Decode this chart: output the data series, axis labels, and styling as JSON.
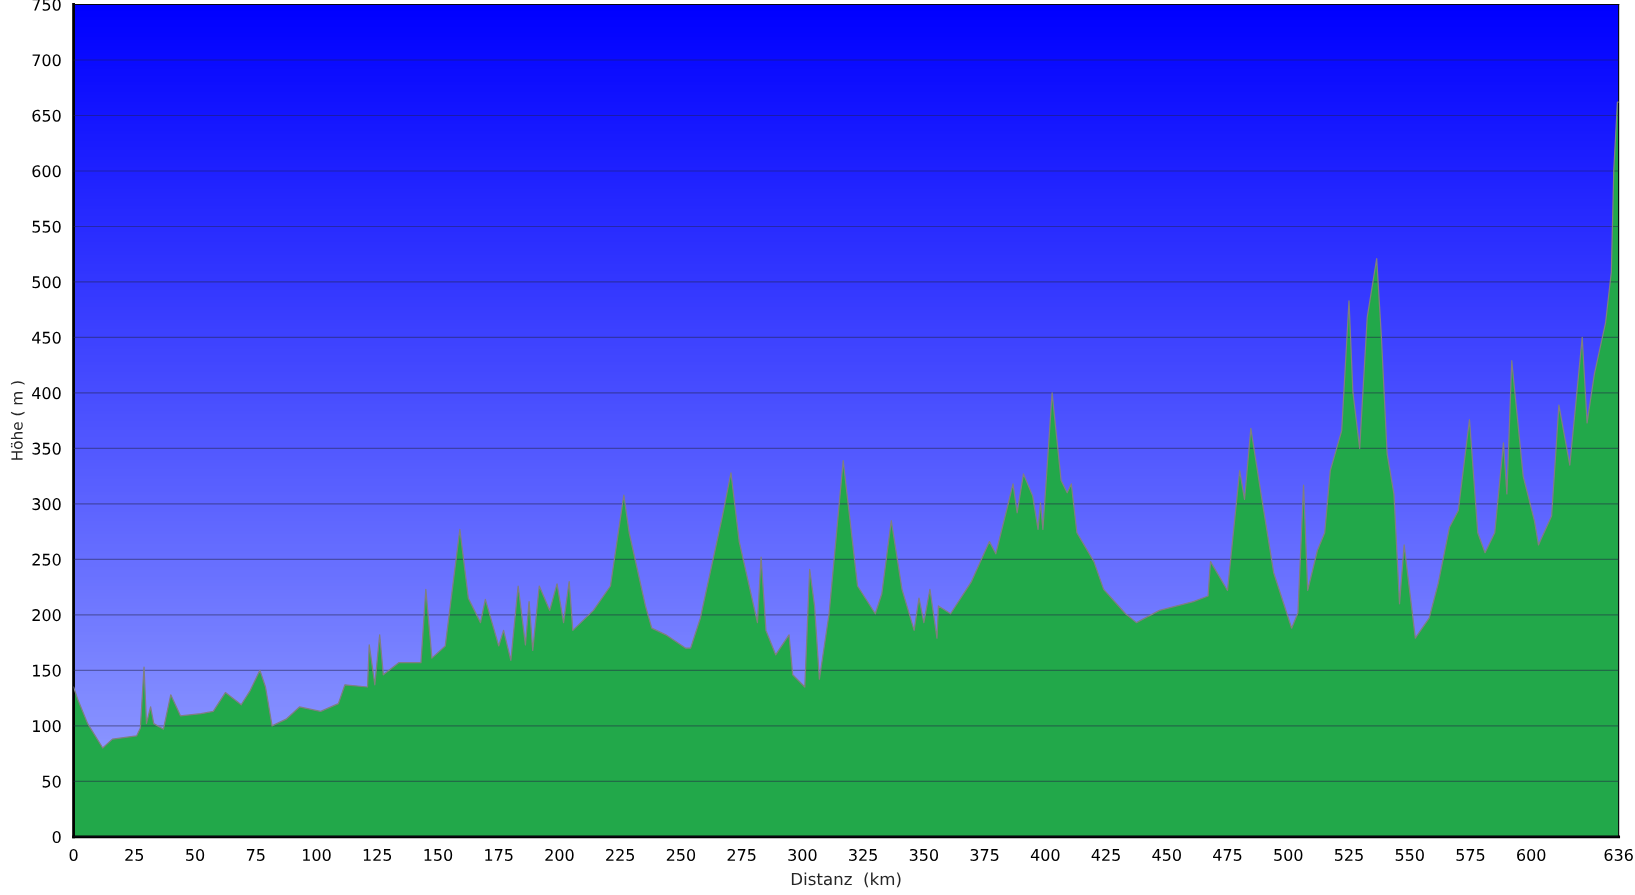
{
  "chart_data": {
    "type": "area",
    "xlabel": "Distanz  (km)",
    "ylabel": "Höhe ( m )",
    "xlim": [
      0,
      636
    ],
    "xticks": [
      0,
      25,
      50,
      75,
      100,
      125,
      150,
      175,
      200,
      225,
      250,
      275,
      300,
      325,
      350,
      375,
      400,
      425,
      450,
      475,
      500,
      525,
      550,
      575,
      600,
      636
    ],
    "ylim": [
      0,
      750
    ],
    "yticks": [
      0,
      50,
      100,
      150,
      200,
      250,
      300,
      350,
      400,
      450,
      500,
      550,
      600,
      650,
      700,
      750
    ],
    "grid": "y",
    "legend": false,
    "series": [
      {
        "color": "#22a84a",
        "x": [
          0,
          1.7,
          5.8,
          12,
          16,
          26,
          27.5,
          29,
          30,
          31.7,
          33,
          37,
          40,
          44,
          52.5,
          57.5,
          62.5,
          69,
          72.5,
          76.7,
          79,
          81.7,
          87.5,
          93,
          101.7,
          109,
          111.7,
          121,
          121.7,
          124,
          126,
          127.5,
          134,
          143,
          145,
          147.5,
          153,
          159,
          162.5,
          167.5,
          169.5,
          175,
          177,
          180,
          183,
          186,
          187.5,
          189,
          191.7,
          196,
          199,
          201.7,
          204,
          205.5,
          214,
          221,
          226.5,
          228.7,
          235.4,
          238,
          243.8,
          252,
          254,
          258,
          267,
          270.6,
          274,
          281.5,
          283,
          285,
          289,
          294.5,
          296,
          301,
          303,
          305,
          307,
          311,
          316.8,
          322.7,
          330,
          332.7,
          336.6,
          341,
          346,
          348,
          350,
          352.5,
          355.4,
          356,
          361,
          369.6,
          377,
          379.6,
          384.6,
          386.7,
          388.4,
          391,
          394.8,
          397,
          398,
          399,
          402.8,
          406.5,
          409,
          410.7,
          413,
          420,
          424,
          433,
          437.5,
          447,
          461,
          467,
          468,
          475,
          480,
          482,
          484.6,
          488.8,
          494,
          501.4,
          504,
          506.3,
          508,
          512,
          515,
          517.3,
          522,
          525,
          526.6,
          529.4,
          532.5,
          536.4,
          538.3,
          540.7,
          543.5,
          545.8,
          547.7,
          552.3,
          558,
          561.7,
          566.4,
          570,
          574.6,
          578,
          581,
          585,
          588.6,
          590,
          592,
          596.7,
          601.4,
          603,
          608.4,
          611.4,
          615.9,
          621,
          623,
          626,
          630.6,
          633,
          634,
          635.5,
          636
        ],
        "values": [
          135,
          124,
          102,
          80,
          88,
          91,
          98,
          153,
          102,
          117,
          102,
          97,
          128,
          109,
          111,
          113,
          130,
          119,
          131,
          150,
          135,
          100,
          106,
          117,
          113,
          120,
          137,
          135,
          173,
          137,
          182,
          146,
          157,
          157,
          223,
          161,
          172,
          277,
          215,
          193,
          214,
          172,
          186,
          159,
          226,
          173,
          212,
          168,
          226,
          204,
          228,
          193,
          230,
          186,
          204,
          226,
          308,
          274,
          208,
          188,
          182,
          170,
          170,
          197,
          288,
          328,
          266,
          193,
          252,
          186,
          164,
          182,
          146,
          135,
          241,
          208,
          142,
          201,
          339,
          226,
          201,
          219,
          285,
          223,
          186,
          215,
          193,
          223,
          179,
          208,
          201,
          230,
          266,
          255,
          299,
          318,
          292,
          327,
          307,
          277,
          301,
          277,
          400,
          321,
          310,
          318,
          274,
          248,
          223,
          201,
          193,
          204,
          212,
          217,
          248,
          222,
          330,
          304,
          368,
          309,
          238,
          188,
          202,
          317,
          222,
          258,
          274,
          330,
          366,
          483,
          401,
          350,
          468,
          521,
          452,
          345,
          309,
          210,
          263,
          179,
          197,
          228,
          279,
          294,
          376,
          274,
          256,
          274,
          355,
          309,
          429,
          325,
          284,
          263,
          289,
          389,
          335,
          450,
          373,
          417,
          463,
          509,
          601,
          662,
          662
        ]
      }
    ]
  }
}
